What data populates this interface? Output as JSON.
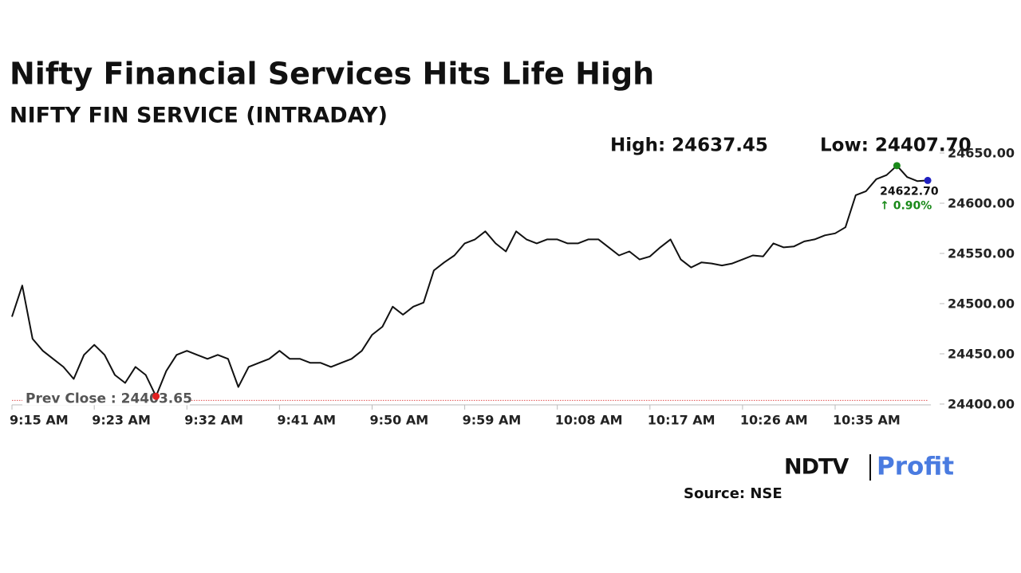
{
  "chart_data": {
    "type": "line",
    "title": "Nifty Financial Services Hits Life High",
    "subtitle": "NIFTY FIN SERVICE (INTRADAY)",
    "high_label": "High: 24637.45",
    "low_label": "Low: 24407.70",
    "prev_close": 24403.65,
    "prev_close_label": "Prev Close : 24403.65",
    "last_label": "24622.70",
    "change_label": "↑ 0.90%",
    "source": "Source: NSE",
    "logo": [
      "NDTV",
      "Profit"
    ],
    "color": "#111111",
    "x": [
      "9:15 AM",
      "9:16 AM",
      "9:17 AM",
      "9:18 AM",
      "9:19 AM",
      "9:20 AM",
      "9:21 AM",
      "9:22 AM",
      "9:23 AM",
      "9:24 AM",
      "9:25 AM",
      "9:26 AM",
      "9:27 AM",
      "9:28 AM",
      "9:29 AM",
      "9:30 AM",
      "9:31 AM",
      "9:32 AM",
      "9:33 AM",
      "9:34 AM",
      "9:35 AM",
      "9:36 AM",
      "9:37 AM",
      "9:38 AM",
      "9:39 AM",
      "9:40 AM",
      "9:41 AM",
      "9:42 AM",
      "9:43 AM",
      "9:44 AM",
      "9:45 AM",
      "9:46 AM",
      "9:47 AM",
      "9:48 AM",
      "9:49 AM",
      "9:50 AM",
      "9:51 AM",
      "9:52 AM",
      "9:53 AM",
      "9:54 AM",
      "9:55 AM",
      "9:56 AM",
      "9:57 AM",
      "9:58 AM",
      "9:59 AM",
      "10:00 AM",
      "10:01 AM",
      "10:02 AM",
      "10:03 AM",
      "10:04 AM",
      "10:05 AM",
      "10:06 AM",
      "10:07 AM",
      "10:08 AM",
      "10:09 AM",
      "10:10 AM",
      "10:11 AM",
      "10:12 AM",
      "10:13 AM",
      "10:14 AM",
      "10:15 AM",
      "10:16 AM",
      "10:17 AM",
      "10:18 AM",
      "10:19 AM",
      "10:20 AM",
      "10:21 AM",
      "10:22 AM",
      "10:23 AM",
      "10:24 AM",
      "10:25 AM",
      "10:26 AM",
      "10:27 AM",
      "10:28 AM",
      "10:29 AM",
      "10:30 AM",
      "10:31 AM",
      "10:32 AM",
      "10:33 AM",
      "10:34 AM",
      "10:35 AM",
      "10:36 AM",
      "10:37 AM",
      "10:38 AM",
      "10:39 AM",
      "10:40 AM",
      "10:41 AM",
      "10:42 AM",
      "10:43 AM",
      "10:44 AM"
    ],
    "values": [
      24487,
      24518,
      24465,
      24453,
      24445,
      24437,
      24425,
      24449,
      24459,
      24449,
      24429,
      24421,
      24437,
      24429,
      24407.7,
      24433,
      24449,
      24453,
      24449,
      24445,
      24449,
      24445,
      24417,
      24437,
      24441,
      24445,
      24453,
      24445,
      24445,
      24441,
      24441,
      24437,
      24441,
      24445,
      24453,
      24469,
      24477,
      24497,
      24489,
      24497,
      24501,
      24533,
      24541,
      24548,
      24560,
      24564,
      24572,
      24560,
      24552,
      24572,
      24564,
      24560,
      24564,
      24564,
      24560,
      24560,
      24564,
      24564,
      24556,
      24548,
      24552,
      24544,
      24547,
      24556,
      24564,
      24544,
      24536,
      24541,
      24540,
      24538,
      24540,
      24544,
      24548,
      24547,
      24560,
      24556,
      24557,
      24562,
      24564,
      24568,
      24570,
      24576,
      24608,
      24612,
      24624,
      24628,
      24637.45,
      24626,
      24622,
      24622.7
    ],
    "low_index": 14,
    "high_index": 86,
    "xticks": [
      "9:15 AM",
      "9:23 AM",
      "9:32 AM",
      "9:41 AM",
      "9:50 AM",
      "9:59 AM",
      "10:08 AM",
      "10:17 AM",
      "10:26 AM",
      "10:35 AM"
    ],
    "ylim": [
      24400,
      24650
    ],
    "yticks": [
      {
        "value": 24400,
        "label": "24400.00"
      },
      {
        "value": 24450,
        "label": "24450.00"
      },
      {
        "value": 24500,
        "label": "24500.00"
      },
      {
        "value": 24550,
        "label": "24550.00"
      },
      {
        "value": 24600,
        "label": "24600.00"
      },
      {
        "value": 24650,
        "label": "24650.00"
      }
    ]
  }
}
